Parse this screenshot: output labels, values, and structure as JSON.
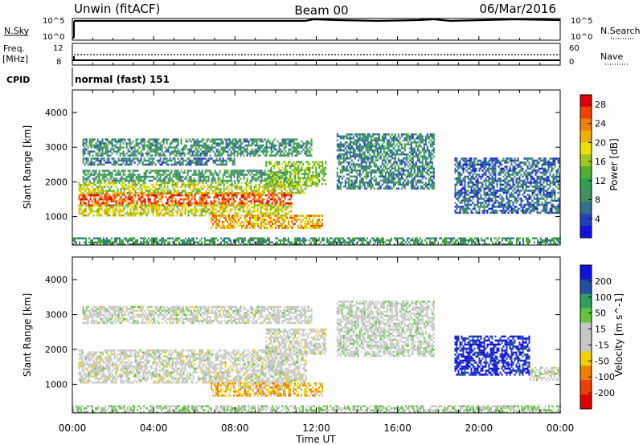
{
  "header": {
    "station": "Unwin (fitACF)",
    "beam": "Beam 00",
    "date": "06/Mar/2016"
  },
  "status": {
    "nsky_label": "N.Sky",
    "nsearch_label": "N.Search",
    "freq_label": "Freq.",
    "freq_unit": "[MHz]",
    "nave_label": "Nave",
    "cpid_label": "CPID",
    "cpid_value": "normal (fast) 151",
    "noise_ticks": [
      "10^5",
      "10^0"
    ],
    "freq_ticks": [
      "12",
      "8"
    ],
    "nave_ticks": [
      "60",
      "0"
    ]
  },
  "colors": {
    "power_scale": [
      "#1010e0",
      "#2040c0",
      "#307090",
      "#409060",
      "#30a050",
      "#50b030",
      "#a0c818",
      "#f0e000",
      "#f0b000",
      "#f08000",
      "#f04000",
      "#e00000"
    ],
    "velocity_scale": [
      "#1010e0",
      "#2050a0",
      "#30a060",
      "#60c840",
      "#c8c8c8",
      "#c8c8c8",
      "#f0d000",
      "#f08000",
      "#f04000",
      "#e00000"
    ]
  },
  "chart_data": [
    {
      "type": "heatmap",
      "title": "Power",
      "xlabel": "Time UT",
      "ylabel": "Slant Range [km]",
      "x_ticks": [
        "00:00",
        "04:00",
        "08:00",
        "12:00",
        "16:00",
        "20:00",
        "00:00"
      ],
      "xlim": [
        0,
        24
      ],
      "y_ticks": [
        1000,
        2000,
        3000,
        4000
      ],
      "ylim": [
        180,
        4650
      ],
      "colorbar_label": "Power [dB]",
      "colorbar_ticks": [
        4,
        8,
        12,
        16,
        20,
        24,
        28
      ],
      "colorbar_range": [
        0,
        30
      ],
      "regions": [
        {
          "t0": 0.3,
          "t1": 10.8,
          "r0": 1350,
          "r1": 1700,
          "value": 26
        },
        {
          "t0": 0.3,
          "t1": 10.8,
          "r0": 1050,
          "r1": 1350,
          "value": 18
        },
        {
          "t0": 0.3,
          "t1": 11.5,
          "r0": 1700,
          "r1": 2000,
          "value": 17
        },
        {
          "t0": 0.5,
          "t1": 10.5,
          "r0": 2050,
          "r1": 2350,
          "value": 10
        },
        {
          "t0": 0.5,
          "t1": 8.0,
          "r0": 2500,
          "r1": 2700,
          "value": 7
        },
        {
          "t0": 0.5,
          "t1": 11.8,
          "r0": 2750,
          "r1": 3250,
          "value": 9
        },
        {
          "t0": 6.8,
          "t1": 12.3,
          "r0": 650,
          "r1": 1050,
          "value": 22
        },
        {
          "t0": 9.5,
          "t1": 12.5,
          "r0": 1900,
          "r1": 2600,
          "value": 15
        },
        {
          "t0": 13.0,
          "t1": 17.8,
          "r0": 1800,
          "r1": 3400,
          "value": 8
        },
        {
          "t0": 18.8,
          "t1": 24.0,
          "r0": 1100,
          "r1": 2700,
          "value": 6
        },
        {
          "t0": 0.0,
          "t1": 24.0,
          "r0": 200,
          "r1": 400,
          "value": 10
        }
      ]
    },
    {
      "type": "heatmap",
      "title": "Velocity",
      "xlabel": "Time UT",
      "ylabel": "Slant Range [km]",
      "x_ticks": [
        "00:00",
        "04:00",
        "08:00",
        "12:00",
        "16:00",
        "20:00",
        "00:00"
      ],
      "xlim": [
        0,
        24
      ],
      "y_ticks": [
        1000,
        2000,
        3000,
        4000
      ],
      "ylim": [
        180,
        4650
      ],
      "colorbar_label": "Velocity [m s^-1]",
      "colorbar_ticks": [
        200,
        100,
        50,
        15,
        -15,
        -50,
        -100,
        -200
      ],
      "colorbar_range": [
        -250,
        250
      ],
      "regions": [
        {
          "t0": 0.3,
          "t1": 11.5,
          "r0": 1050,
          "r1": 2000,
          "value": 0
        },
        {
          "t0": 0.5,
          "t1": 11.8,
          "r0": 2750,
          "r1": 3250,
          "value": 5
        },
        {
          "t0": 6.8,
          "t1": 12.3,
          "r0": 650,
          "r1": 1050,
          "value": -80
        },
        {
          "t0": 9.5,
          "t1": 12.5,
          "r0": 1900,
          "r1": 2600,
          "value": 0
        },
        {
          "t0": 13.0,
          "t1": 17.8,
          "r0": 1800,
          "r1": 3400,
          "value": 10
        },
        {
          "t0": 18.8,
          "t1": 22.5,
          "r0": 1300,
          "r1": 2400,
          "value": 220
        },
        {
          "t0": 22.5,
          "t1": 24.0,
          "r0": 1100,
          "r1": 1500,
          "value": 0
        },
        {
          "t0": 0.0,
          "t1": 24.0,
          "r0": 200,
          "r1": 400,
          "value": 40
        }
      ]
    }
  ]
}
